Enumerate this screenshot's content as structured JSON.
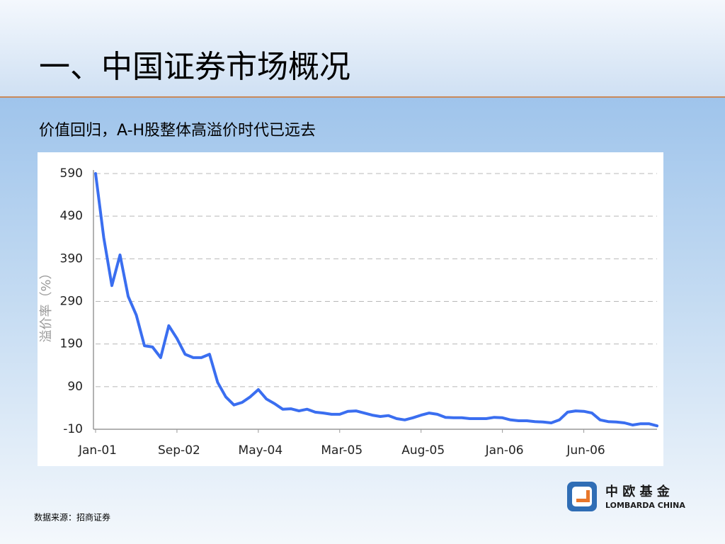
{
  "title": "一、中国证券市场概况",
  "subtitle": "价值回归，A-H股整体高溢价时代已远去",
  "source": "数据来源：招商证券",
  "logo": {
    "name_cn": "中 欧 基 金",
    "name_en": "LOMBARDA CHINA"
  },
  "chart_data": {
    "type": "line",
    "y_label": "溢价率（%）",
    "color": "#3a6ef0",
    "categories": [
      "Jan-01",
      null,
      null,
      null,
      null,
      null,
      null,
      null,
      null,
      null,
      "Sep-02",
      null,
      null,
      null,
      null,
      null,
      null,
      null,
      null,
      null,
      "May-04",
      null,
      null,
      null,
      null,
      null,
      null,
      null,
      null,
      null,
      "Mar-05",
      null,
      null,
      null,
      null,
      null,
      null,
      null,
      null,
      null,
      "Aug-05",
      null,
      null,
      null,
      null,
      null,
      null,
      null,
      null,
      null,
      "Jan-06",
      null,
      null,
      null,
      null,
      null,
      null,
      null,
      null,
      null,
      "Jun-06",
      null,
      null,
      null,
      null,
      null,
      null,
      null,
      null,
      null
    ],
    "values": [
      590,
      440,
      327,
      399,
      302,
      258,
      186,
      183,
      158,
      233,
      203,
      166,
      158,
      158,
      166,
      100,
      66,
      47,
      53,
      66,
      83,
      61,
      50,
      37,
      38,
      33,
      37,
      30,
      28,
      25,
      25,
      32,
      33,
      28,
      23,
      20,
      22,
      15,
      12,
      17,
      23,
      28,
      25,
      18,
      17,
      17,
      15,
      15,
      15,
      18,
      17,
      12,
      10,
      10,
      8,
      7,
      5,
      12,
      30,
      33,
      32,
      28,
      12,
      8,
      7,
      5,
      0,
      3,
      3,
      -2
    ],
    "ylim": [
      -10,
      590
    ],
    "yticks": [
      -10,
      90,
      190,
      290,
      390,
      490,
      590
    ],
    "grid": true
  }
}
